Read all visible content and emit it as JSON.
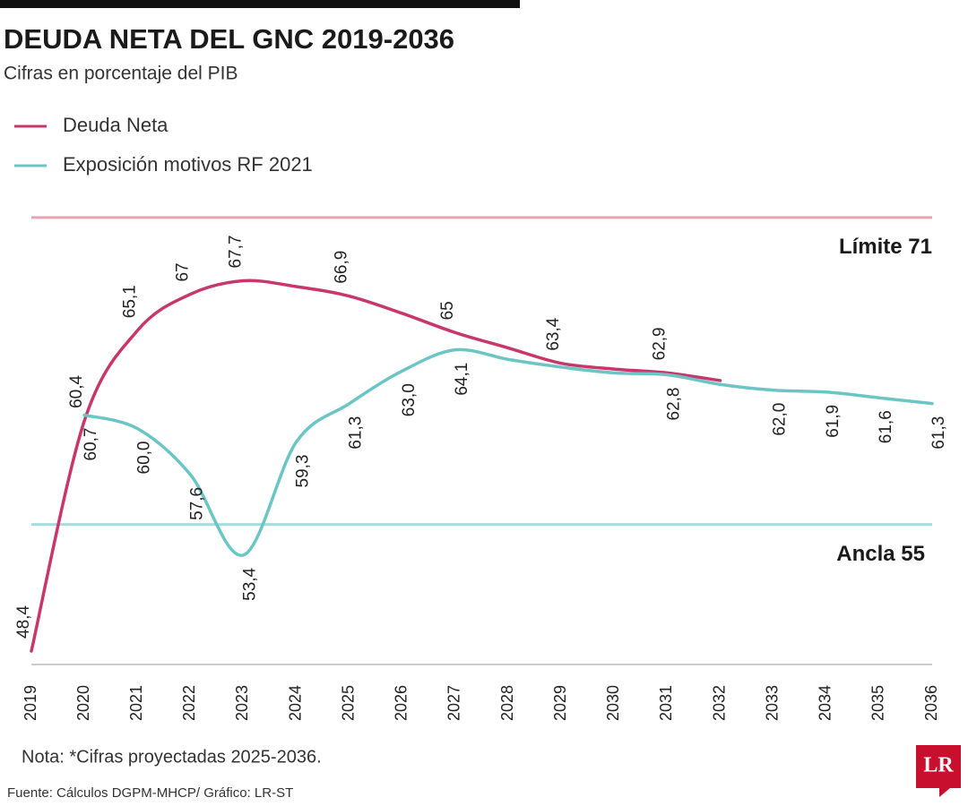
{
  "chart_data": {
    "type": "line",
    "title": "DEUDA NETA DEL GNC 2019-2036",
    "subtitle": "Cifras en porcentaje del PIB",
    "categories": [
      "2019",
      "2020",
      "2021",
      "2022",
      "2023",
      "2024",
      "2025",
      "2026",
      "2027",
      "2028",
      "2029",
      "2030",
      "2031",
      "2032",
      "2033",
      "2034",
      "2035",
      "2036"
    ],
    "series": [
      {
        "name": "Deuda Neta",
        "color": "#c8376a",
        "values": [
          48.4,
          60.4,
          65.1,
          67,
          67.7,
          67.4,
          66.9,
          66.0,
          65,
          64.2,
          63.4,
          63.1,
          62.9,
          62.5,
          null,
          null,
          null,
          null
        ],
        "value_labels": [
          "48,4",
          "60,4",
          "65,1",
          "67",
          "67,7",
          null,
          "66,9",
          null,
          "65",
          null,
          "63,4",
          null,
          "62,9",
          null,
          null,
          null,
          null,
          null
        ]
      },
      {
        "name": "Exposición motivos RF 2021",
        "color": "#6cc5c5",
        "values": [
          null,
          60.7,
          60.0,
          57.6,
          53.4,
          59.3,
          61.3,
          63.0,
          64.1,
          63.6,
          63.2,
          62.9,
          62.8,
          62.3,
          62.0,
          61.9,
          61.6,
          61.3
        ],
        "value_labels": [
          null,
          "60,7",
          "60,0",
          "57,6",
          "53,4",
          "59,3",
          "61,3",
          "63,0",
          "64,1",
          null,
          null,
          null,
          "62,8",
          null,
          "62,0",
          "61,9",
          "61,6",
          "61,3"
        ]
      }
    ],
    "reference_lines": [
      {
        "label": "Límite 71",
        "value": 71,
        "color": "#e8a3b5"
      },
      {
        "label": "Ancla 55",
        "value": 55,
        "color": "#a6dcdc"
      }
    ],
    "ylim": [
      47.7,
      73
    ],
    "note": "Nota: *Cifras proyectadas 2025-2036.",
    "source": "Fuente: Cálculos DGPM-MHCP/ Gráfico: LR-ST",
    "logo": "LR"
  }
}
